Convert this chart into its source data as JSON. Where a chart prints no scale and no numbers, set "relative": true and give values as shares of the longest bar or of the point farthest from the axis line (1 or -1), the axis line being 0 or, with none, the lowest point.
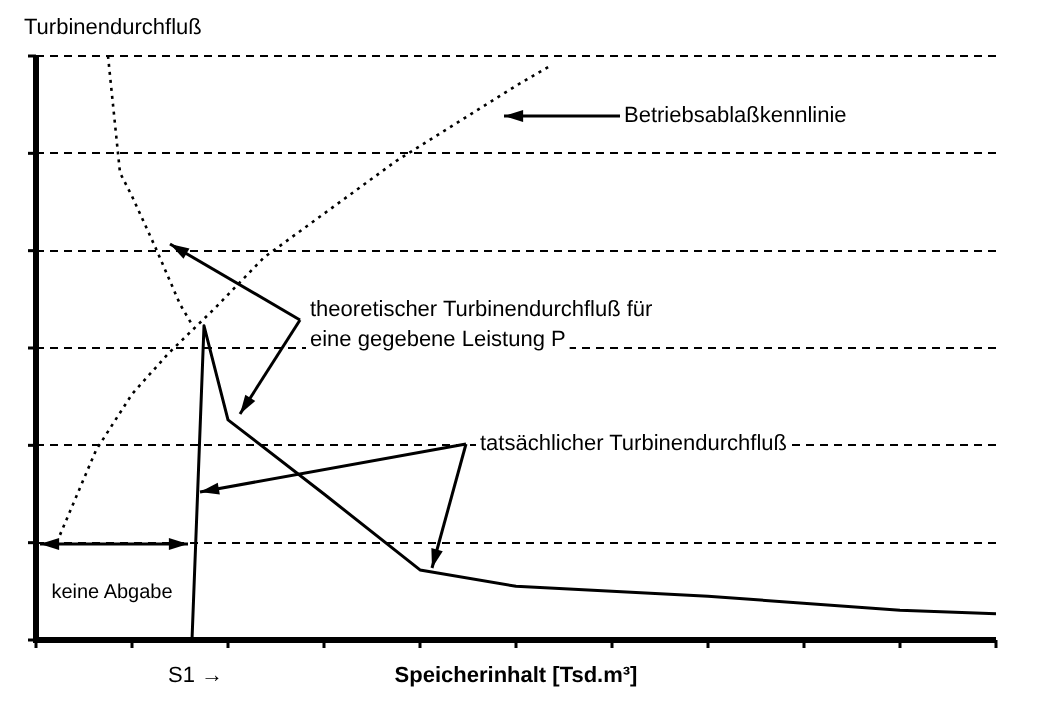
{
  "chart_data": {
    "type": "line",
    "relative": true,
    "xlabel": "Speicherinhalt [Tsd.m³]",
    "ylabel": "Turbinendurchfluß",
    "categories": [
      null,
      null,
      null,
      null,
      null,
      null,
      null,
      null,
      null,
      null,
      null,
      null,
      null,
      null,
      null,
      null,
      null,
      null,
      null,
      null,
      null,
      null,
      null,
      null,
      null,
      null,
      null,
      null,
      null,
      null,
      null,
      null,
      null,
      null,
      null,
      null,
      null,
      null,
      null,
      null,
      null,
      null,
      null,
      null,
      null,
      null,
      null,
      null,
      null,
      null,
      null,
      null,
      null,
      null,
      null,
      null,
      null,
      null,
      null,
      null,
      null,
      null,
      null,
      null,
      null,
      null,
      null,
      null,
      null,
      null,
      null,
      null,
      null,
      null,
      null,
      null,
      null,
      null,
      null,
      null,
      null
    ],
    "grid": "y",
    "legend": false,
    "marker": "none",
    "series": [
      {
        "color": "#000000",
        "line_style": "dotted",
        "values": [
          null,
          null,
          null,
          null,
          null,
          null,
          1.0,
          0.8,
          0.76,
          null,
          0.67,
          null,
          0.575,
          0.54,
          null,
          null,
          null,
          null,
          null,
          null,
          null,
          null,
          null,
          null,
          null,
          null,
          null,
          null,
          null,
          null,
          null,
          null,
          null,
          null,
          null,
          null,
          null,
          null,
          null,
          null,
          null,
          null,
          null,
          null,
          null,
          null,
          null,
          null,
          null,
          null,
          null,
          null,
          null,
          null,
          null,
          null,
          null,
          null,
          null,
          null,
          null,
          null,
          null,
          null,
          null,
          null,
          null,
          null,
          null,
          null,
          null,
          null,
          null,
          null,
          null,
          null,
          null,
          null,
          null,
          null,
          null
        ]
      },
      {
        "color": "#000000",
        "line_style": "dotted",
        "values": [
          null,
          null,
          0.18,
          null,
          null,
          0.325,
          null,
          null,
          0.421,
          null,
          null,
          0.49,
          null,
          null,
          null,
          0.57,
          null,
          null,
          null,
          0.655,
          null,
          null,
          null,
          null,
          null,
          null,
          null,
          null,
          null,
          null,
          0.82,
          null,
          null,
          null,
          null,
          null,
          null,
          null,
          null,
          null,
          0.949,
          null,
          null,
          0.985,
          null,
          null,
          null,
          null,
          null,
          null,
          null,
          null,
          null,
          null,
          null,
          null,
          null,
          null,
          null,
          null,
          null,
          null,
          null,
          null,
          null,
          null,
          null,
          null,
          null,
          null,
          null,
          null,
          null,
          null,
          null,
          null,
          null,
          null,
          null,
          null,
          null
        ]
      },
      {
        "color": "#000000",
        "line_style": "solid",
        "values": [
          null,
          null,
          null,
          null,
          null,
          null,
          null,
          null,
          null,
          null,
          null,
          null,
          null,
          0,
          0.538,
          null,
          0.377,
          null,
          null,
          null,
          null,
          null,
          null,
          null,
          0.25,
          null,
          null,
          null,
          null,
          null,
          null,
          null,
          0.12,
          null,
          null,
          null,
          null,
          null,
          null,
          null,
          0.092,
          null,
          null,
          null,
          null,
          null,
          null,
          null,
          null,
          null,
          null,
          null,
          null,
          null,
          null,
          null,
          0.075,
          null,
          null,
          null,
          null,
          null,
          null,
          null,
          null,
          null,
          null,
          null,
          null,
          null,
          null,
          null,
          0.051,
          null,
          null,
          null,
          null,
          null,
          null,
          null,
          0.045
        ]
      }
    ],
    "annotations": [
      "Betriebsablaßkennlinie",
      "theoretischer Turbinendurchfluß für\neine gegebene Leistung P",
      "tatsächlicher Turbinendurchfluß",
      "keine Abgabe",
      "S1 →"
    ]
  }
}
